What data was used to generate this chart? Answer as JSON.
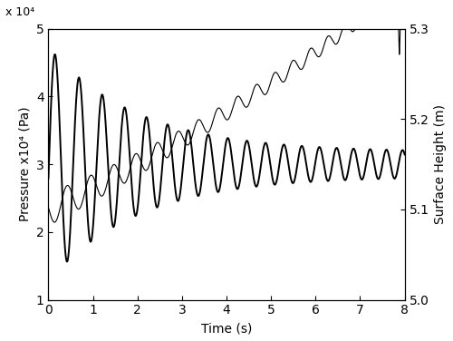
{
  "xlim": [
    0,
    8
  ],
  "ylim_left": [
    1,
    5
  ],
  "ylim_right": [
    5.0,
    5.3
  ],
  "yticks_left": [
    1,
    2,
    3,
    4,
    5
  ],
  "yticks_left_labels": [
    "1",
    "2",
    "3",
    "4",
    "5"
  ],
  "yticks_right": [
    5.0,
    5.1,
    5.2,
    5.3
  ],
  "xticks": [
    0,
    1,
    2,
    3,
    4,
    5,
    6,
    7,
    8
  ],
  "xlabel": "Time (s)",
  "ylabel_left": "Pressure x10⁴ (Pa)",
  "ylabel_right": "Surface Height (m)",
  "exponent_label": "x 10⁴",
  "background_color": "#ffffff",
  "line_color_pressure": "#000000",
  "line_color_surface": "#000000",
  "pressure_linewidth": 1.4,
  "surface_linewidth": 0.8,
  "figsize": [
    5.0,
    3.76
  ],
  "dpi": 100
}
